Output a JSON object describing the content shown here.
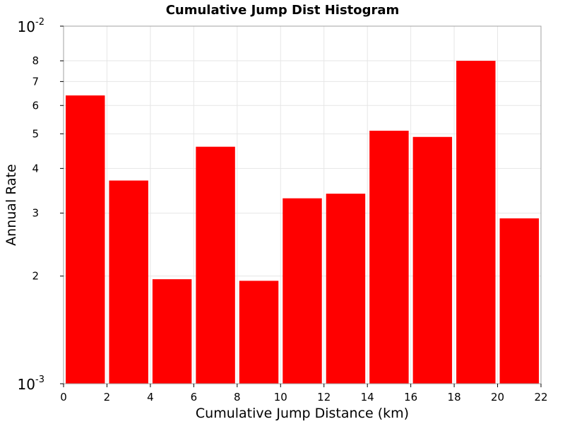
{
  "chart_data": {
    "type": "bar",
    "title": "Cumulative Jump Dist Histogram",
    "xlabel": "Cumulative Jump Distance (km)",
    "ylabel": "Annual Rate",
    "x": [
      1,
      3,
      5,
      7,
      9,
      11,
      13,
      15,
      17,
      19,
      21
    ],
    "bin_width": 2,
    "values": [
      0.0064,
      0.0037,
      0.00196,
      0.0046,
      0.00194,
      0.0033,
      0.0034,
      0.0051,
      0.0049,
      0.008,
      0.0029
    ],
    "xlim": [
      0,
      22
    ],
    "ylim": [
      0.001,
      0.01
    ],
    "y_scale": "log",
    "grid": true,
    "bar_color": "#ff0000",
    "x_ticks": [
      "0",
      "2",
      "4",
      "6",
      "8",
      "10",
      "12",
      "14",
      "16",
      "18",
      "20",
      "22"
    ],
    "y_minor_ticks": [
      "2",
      "3",
      "4",
      "5",
      "6",
      "7",
      "8"
    ],
    "y_decades": [
      {
        "base": "10",
        "exp": "-3"
      },
      {
        "base": "10",
        "exp": "-2"
      }
    ]
  }
}
